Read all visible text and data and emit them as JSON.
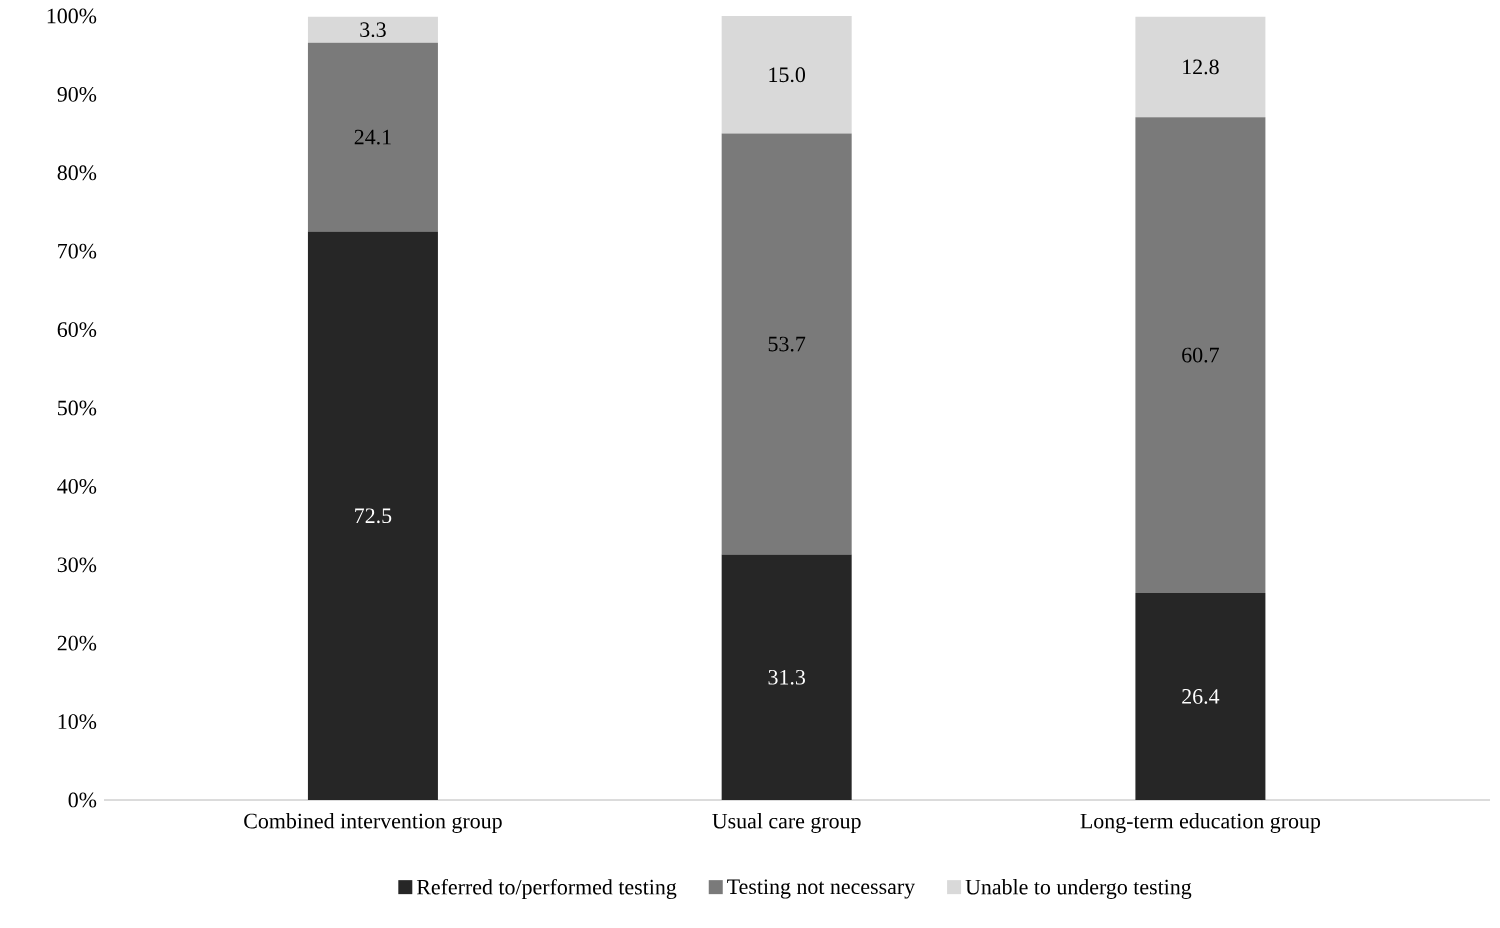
{
  "chart_data": {
    "type": "bar",
    "stacked": true,
    "legend": "bottom",
    "categories": [
      "Combined intervention group",
      "Usual care group",
      "Long-term education group"
    ],
    "series": [
      {
        "name": "Referred to/performed testing",
        "color": "#262626",
        "values": [
          72.5,
          31.3,
          26.4
        ],
        "value_labels": [
          "72.5",
          "31.3",
          "26.4"
        ]
      },
      {
        "name": "Testing not necessary",
        "color": "#7a7a7a",
        "values": [
          24.1,
          53.7,
          60.7
        ],
        "value_labels": [
          "24.1",
          "53.7",
          "60.7"
        ]
      },
      {
        "name": "Unable to undergo testing",
        "color": "#d9d9d9",
        "values": [
          3.3,
          15.0,
          12.8
        ],
        "value_labels": [
          "3.3",
          "15.0",
          "12.8"
        ]
      }
    ],
    "ylim": [
      0,
      100
    ],
    "yticks": [
      {
        "value": 0,
        "label": "0%"
      },
      {
        "value": 10,
        "label": "10%"
      },
      {
        "value": 20,
        "label": "20%"
      },
      {
        "value": 30,
        "label": "30%"
      },
      {
        "value": 40,
        "label": "40%"
      },
      {
        "value": 50,
        "label": "50%"
      },
      {
        "value": 60,
        "label": "60%"
      },
      {
        "value": 70,
        "label": "70%"
      },
      {
        "value": 80,
        "label": "80%"
      },
      {
        "value": 90,
        "label": "90%"
      },
      {
        "value": 100,
        "label": "100%"
      }
    ]
  }
}
